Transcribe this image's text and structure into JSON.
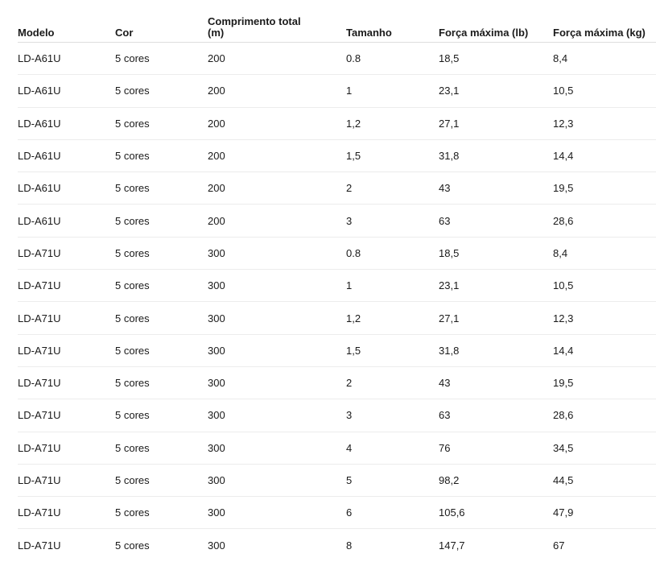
{
  "table": {
    "headers": [
      "Modelo",
      "Cor",
      "Comprimento total (m)",
      "Tamanho",
      "Força máxima (lb)",
      "Força máxima (kg)"
    ],
    "rows": [
      [
        "LD-A61U",
        "5 cores",
        "200",
        "0.8",
        "18,5",
        "8,4"
      ],
      [
        "LD-A61U",
        "5 cores",
        "200",
        "1",
        "23,1",
        "10,5"
      ],
      [
        "LD-A61U",
        "5 cores",
        "200",
        "1,2",
        "27,1",
        "12,3"
      ],
      [
        "LD-A61U",
        "5 cores",
        "200",
        "1,5",
        "31,8",
        "14,4"
      ],
      [
        "LD-A61U",
        "5 cores",
        "200",
        "2",
        "43",
        "19,5"
      ],
      [
        "LD-A61U",
        "5 cores",
        "200",
        "3",
        "63",
        "28,6"
      ],
      [
        "LD-A71U",
        "5 cores",
        "300",
        "0.8",
        "18,5",
        "8,4"
      ],
      [
        "LD-A71U",
        "5 cores",
        "300",
        "1",
        "23,1",
        "10,5"
      ],
      [
        "LD-A71U",
        "5 cores",
        "300",
        "1,2",
        "27,1",
        "12,3"
      ],
      [
        "LD-A71U",
        "5 cores",
        "300",
        "1,5",
        "31,8",
        "14,4"
      ],
      [
        "LD-A71U",
        "5 cores",
        "300",
        "2",
        "43",
        "19,5"
      ],
      [
        "LD-A71U",
        "5 cores",
        "300",
        "3",
        "63",
        "28,6"
      ],
      [
        "LD-A71U",
        "5 cores",
        "300",
        "4",
        "76",
        "34,5"
      ],
      [
        "LD-A71U",
        "5 cores",
        "300",
        "5",
        "98,2",
        "44,5"
      ],
      [
        "LD-A71U",
        "5 cores",
        "300",
        "6",
        "105,6",
        "47,9"
      ],
      [
        "LD-A71U",
        "5 cores",
        "300",
        "8",
        "147,7",
        "67"
      ]
    ]
  }
}
